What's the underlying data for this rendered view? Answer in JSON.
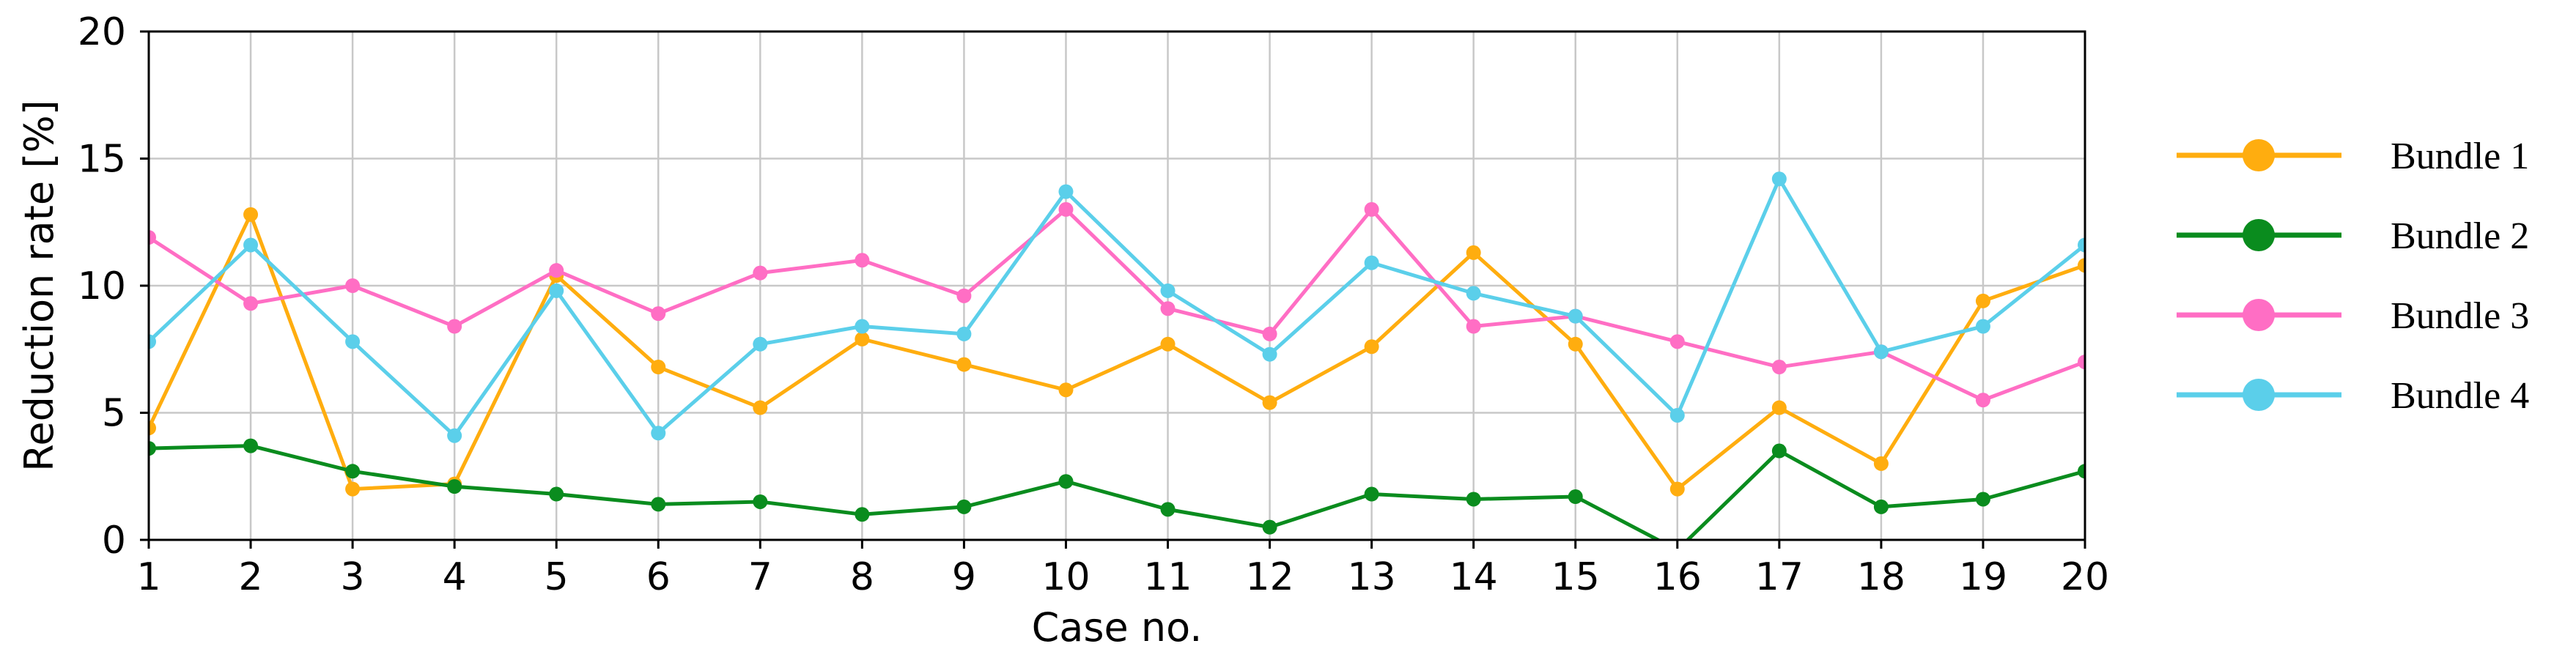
{
  "chart_data": {
    "type": "line",
    "xlabel": "Case no.",
    "ylabel": "Reduction rate [%]",
    "xlim": [
      1,
      20
    ],
    "ylim": [
      0,
      20
    ],
    "x": [
      1,
      2,
      3,
      4,
      5,
      6,
      7,
      8,
      9,
      10,
      11,
      12,
      13,
      14,
      15,
      16,
      17,
      18,
      19,
      20
    ],
    "x_ticks": [
      "1",
      "2",
      "3",
      "4",
      "5",
      "6",
      "7",
      "8",
      "9",
      "10",
      "11",
      "12",
      "13",
      "14",
      "15",
      "16",
      "17",
      "18",
      "19",
      "20"
    ],
    "y_ticks": [
      "0",
      "5",
      "10",
      "15",
      "20"
    ],
    "grid": true,
    "legend_position": "right",
    "series": [
      {
        "name": "Bundle 1",
        "color": "#FFAD0F",
        "values": [
          4.4,
          12.8,
          2.0,
          2.2,
          10.4,
          6.8,
          5.2,
          7.9,
          6.9,
          5.9,
          7.7,
          5.4,
          7.6,
          11.3,
          7.7,
          2.0,
          5.2,
          3.0,
          9.4,
          10.8
        ]
      },
      {
        "name": "Bundle 2",
        "color": "#0A8C1E",
        "values": [
          3.6,
          3.7,
          2.7,
          2.1,
          1.8,
          1.4,
          1.5,
          1.0,
          1.3,
          2.3,
          1.2,
          0.5,
          1.8,
          1.6,
          1.7,
          -0.4,
          3.5,
          1.3,
          1.6,
          2.7
        ]
      },
      {
        "name": "Bundle 3",
        "color": "#FF6EC4",
        "values": [
          11.9,
          9.3,
          10.0,
          8.4,
          10.6,
          8.9,
          10.5,
          11.0,
          9.6,
          13.0,
          9.1,
          8.1,
          13.0,
          8.4,
          8.8,
          7.8,
          6.8,
          7.4,
          5.5,
          7.0
        ]
      },
      {
        "name": "Bundle 4",
        "color": "#5BCFEA",
        "values": [
          7.8,
          11.6,
          7.8,
          4.1,
          9.8,
          4.2,
          7.7,
          8.4,
          8.1,
          13.7,
          9.8,
          7.3,
          10.9,
          9.7,
          8.8,
          4.9,
          14.2,
          7.4,
          8.4,
          11.6
        ]
      }
    ]
  }
}
